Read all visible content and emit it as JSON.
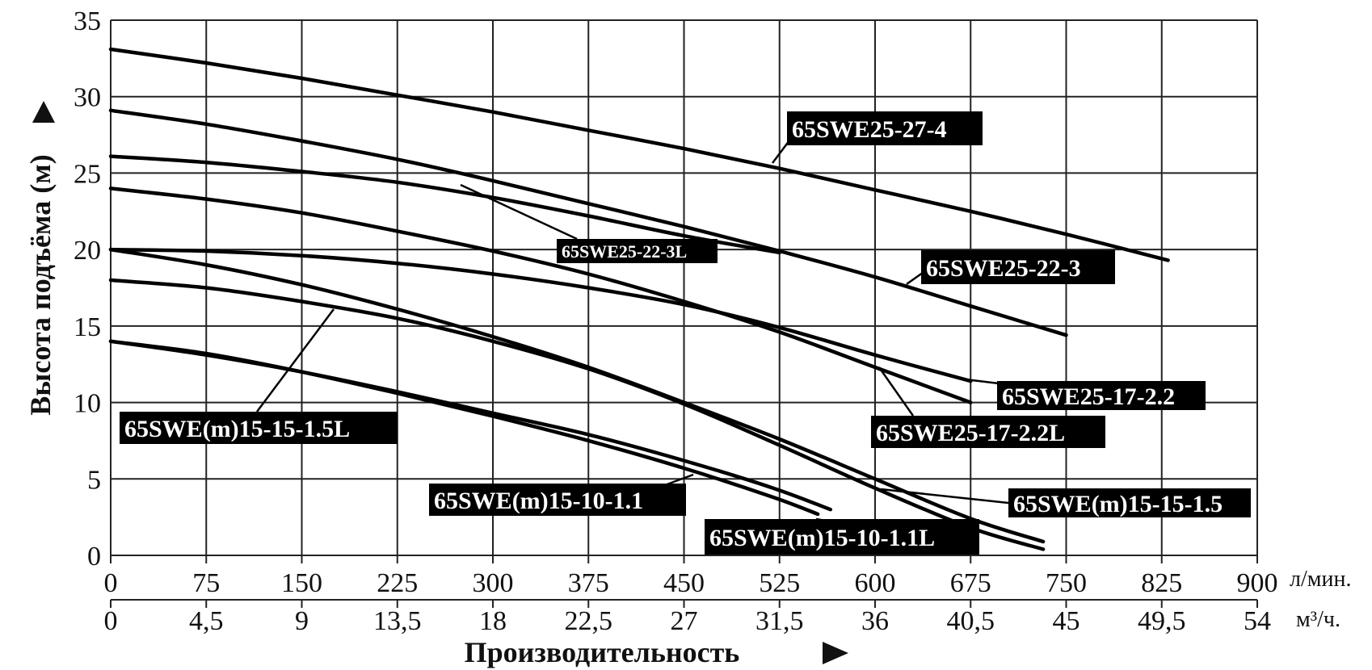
{
  "chart_data": {
    "type": "line",
    "xlabel": "Производительность",
    "ylabel": "Высота подъёма (м)",
    "x_unit": "л/мин.",
    "x2_unit": "м³/ч.",
    "xlim": [
      0,
      900
    ],
    "ylim": [
      0,
      35
    ],
    "x_ticks": [
      "0",
      "75",
      "150",
      "225",
      "300",
      "375",
      "450",
      "525",
      "600",
      "675",
      "750",
      "825",
      "900"
    ],
    "x2_ticks": [
      "0",
      "4,5",
      "9",
      "13,5",
      "18",
      "22,5",
      "27",
      "31,5",
      "36",
      "40,5",
      "45",
      "49,5",
      "54"
    ],
    "y_ticks": [
      "0",
      "5",
      "10",
      "15",
      "20",
      "25",
      "30",
      "35"
    ],
    "grid": true,
    "series": [
      {
        "name": "65SWE25-27-4",
        "x": [
          0,
          75,
          150,
          225,
          300,
          375,
          450,
          525,
          600,
          675,
          750,
          830
        ],
        "y": [
          33.1,
          32.2,
          31.2,
          30.1,
          29.0,
          27.8,
          26.6,
          25.3,
          23.9,
          22.5,
          21.0,
          19.3
        ]
      },
      {
        "name": "65SWE25-22-3",
        "x": [
          0,
          75,
          150,
          225,
          300,
          375,
          450,
          525,
          600,
          675,
          750
        ],
        "y": [
          29.1,
          28.2,
          27.1,
          25.9,
          24.5,
          23.0,
          21.5,
          19.9,
          18.2,
          16.3,
          14.4
        ]
      },
      {
        "name": "65SWE25-22-3L",
        "x": [
          0,
          75,
          150,
          225,
          300,
          375,
          450,
          525
        ],
        "y": [
          26.1,
          25.7,
          25.1,
          24.4,
          23.4,
          22.2,
          20.9,
          19.8
        ]
      },
      {
        "name": "65SWE25-17-2.2",
        "x": [
          0,
          75,
          150,
          225,
          300,
          375,
          450,
          525,
          600,
          675
        ],
        "y": [
          20.0,
          19.9,
          19.6,
          19.1,
          18.4,
          17.5,
          16.4,
          14.9,
          13.1,
          11.4
        ]
      },
      {
        "name": "65SWE25-17-2.2L",
        "x": [
          0,
          75,
          150,
          225,
          300,
          375,
          450,
          525,
          600,
          675
        ],
        "y": [
          24.0,
          23.3,
          22.4,
          21.2,
          19.9,
          18.4,
          16.6,
          14.6,
          12.3,
          10.0
        ]
      },
      {
        "name": "65SWE(m)15-15-1.5",
        "x": [
          0,
          75,
          150,
          225,
          300,
          375,
          450,
          525,
          600,
          675,
          732
        ],
        "y": [
          20.0,
          19.0,
          17.7,
          16.1,
          14.3,
          12.3,
          10.0,
          7.6,
          5.0,
          2.4,
          0.9
        ]
      },
      {
        "name": "65SWE(m)15-15-1.5L",
        "x": [
          0,
          75,
          150,
          225,
          300,
          375,
          450,
          525,
          600,
          675,
          732
        ],
        "y": [
          18.0,
          17.5,
          16.6,
          15.5,
          14.0,
          12.2,
          9.9,
          7.2,
          4.4,
          1.8,
          0.4
        ]
      },
      {
        "name": "65SWE(m)15-10-1.1",
        "x": [
          0,
          75,
          150,
          225,
          300,
          375,
          450,
          520,
          565
        ],
        "y": [
          14.0,
          13.1,
          12.0,
          10.7,
          9.3,
          7.9,
          6.2,
          4.4,
          3.0
        ]
      },
      {
        "name": "65SWE(m)15-10-1.1L",
        "x": [
          0,
          75,
          150,
          225,
          300,
          375,
          450,
          520,
          555
        ],
        "y": [
          14.0,
          13.2,
          12.0,
          10.6,
          9.1,
          7.5,
          5.7,
          3.8,
          2.7
        ]
      }
    ]
  }
}
